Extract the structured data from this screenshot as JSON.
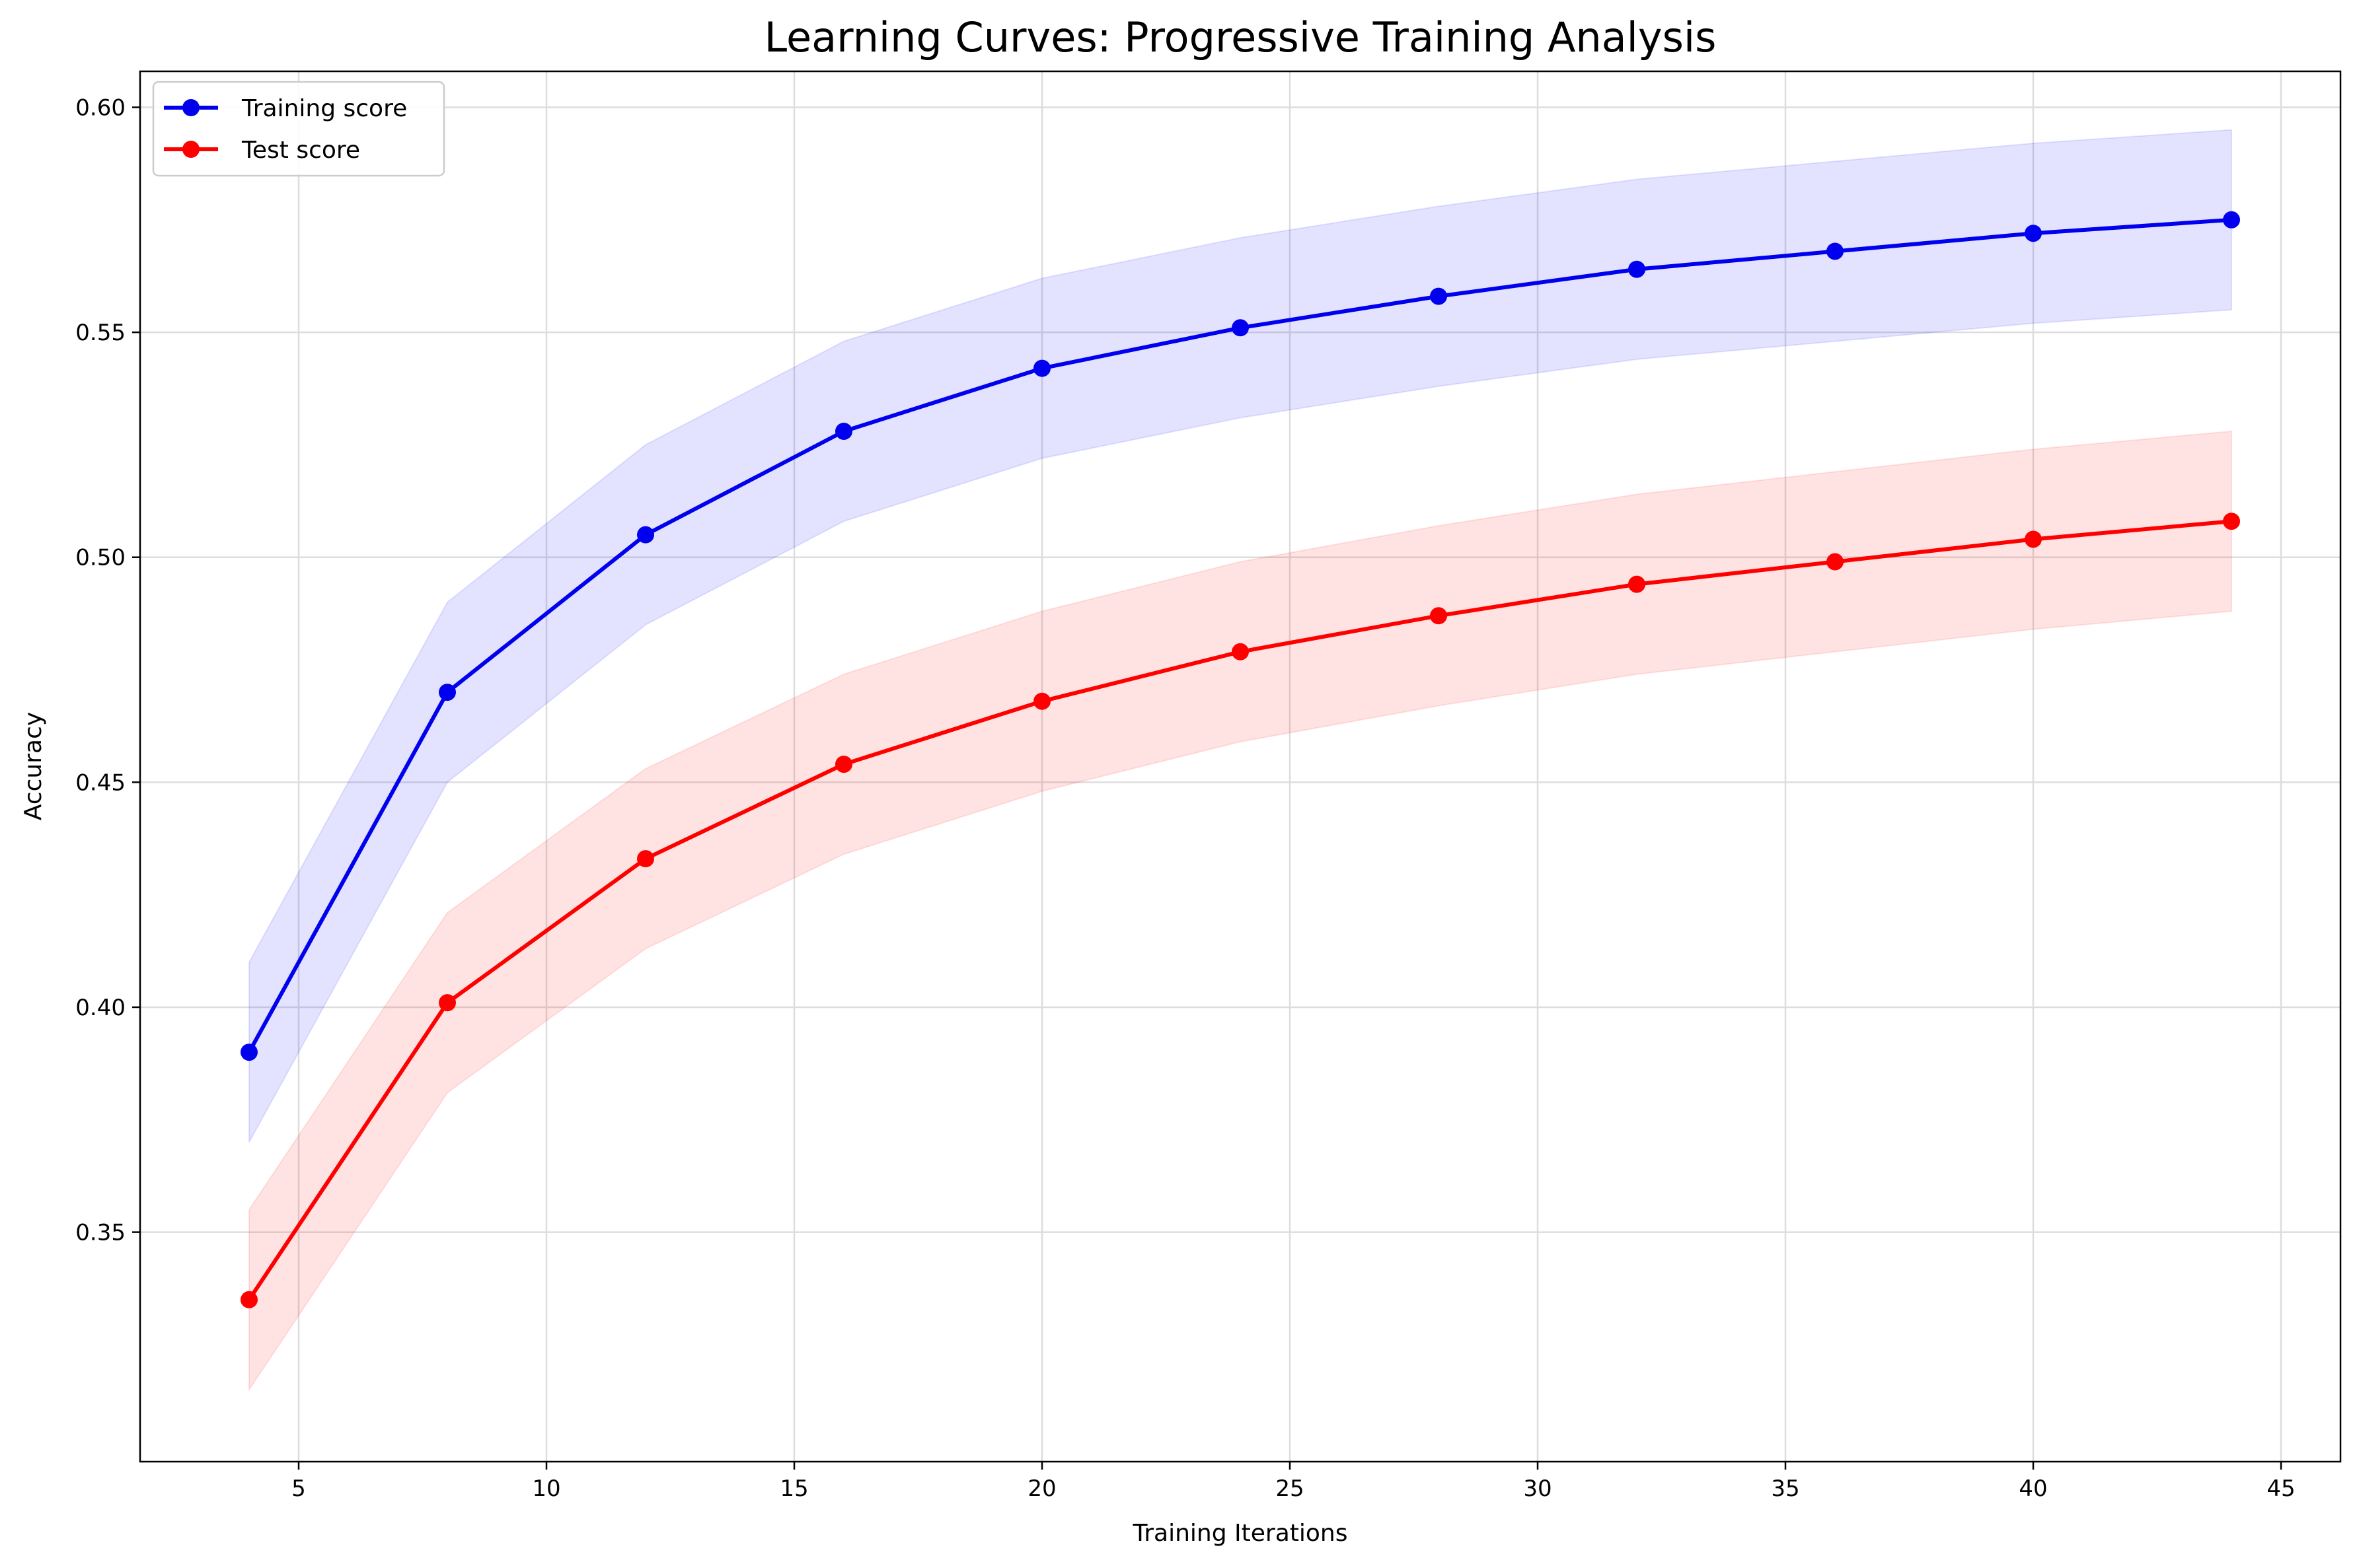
{
  "chart_data": {
    "type": "line",
    "title": "Learning Curves: Progressive Training Analysis",
    "xlabel": "Training Iterations",
    "ylabel": "Accuracy",
    "x": [
      4,
      8,
      12,
      16,
      20,
      24,
      28,
      32,
      36,
      40,
      44
    ],
    "xlim": [
      1.8,
      46.2
    ],
    "ylim": [
      0.299,
      0.608
    ],
    "xticks": [
      5,
      10,
      15,
      20,
      25,
      30,
      35,
      40,
      45
    ],
    "yticks": [
      0.35,
      0.4,
      0.45,
      0.5,
      0.55,
      0.6
    ],
    "ytick_labels": [
      "0.35",
      "0.40",
      "0.45",
      "0.50",
      "0.55",
      "0.60"
    ],
    "grid": true,
    "legend_position": "upper-left",
    "series": [
      {
        "name": "Training score",
        "color": "#0000ee",
        "band_color": "#0000ff",
        "values": [
          0.39,
          0.47,
          0.505,
          0.528,
          0.542,
          0.551,
          0.558,
          0.564,
          0.568,
          0.572,
          0.575
        ],
        "band_half_width": 0.02
      },
      {
        "name": "Test score",
        "color": "#ff0000",
        "band_color": "#ff0000",
        "values": [
          0.335,
          0.401,
          0.433,
          0.454,
          0.468,
          0.479,
          0.487,
          0.494,
          0.499,
          0.504,
          0.508
        ],
        "band_half_width": 0.02
      }
    ]
  }
}
